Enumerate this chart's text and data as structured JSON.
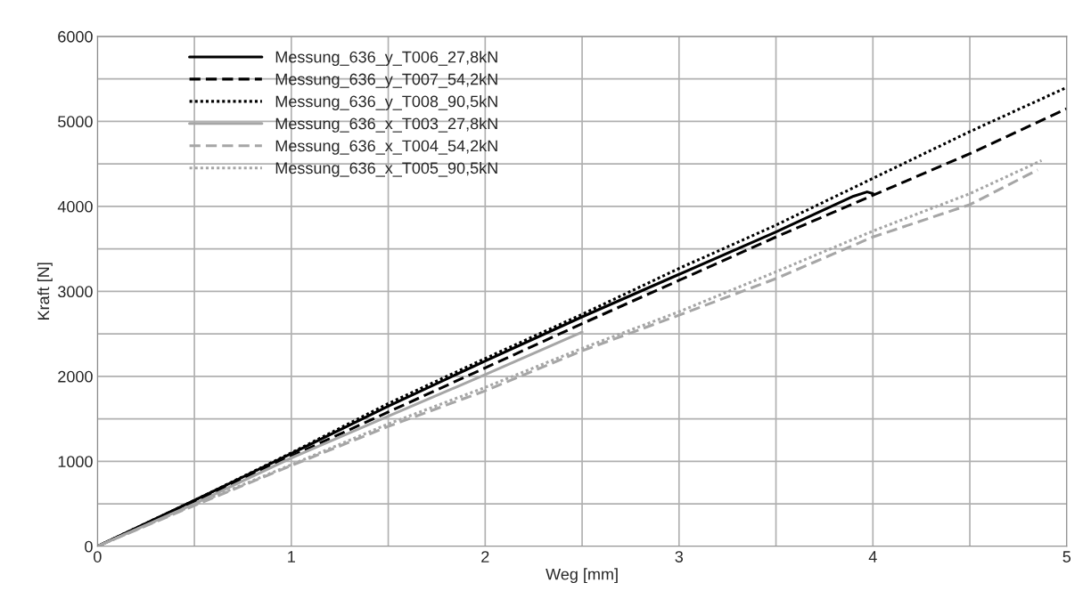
{
  "chart_data": {
    "type": "line",
    "xlabel": "Weg [mm]",
    "ylabel": "Kraft [N]",
    "xlim": [
      0,
      5
    ],
    "ylim": [
      0,
      6000
    ],
    "xticks": [
      0,
      {
        "value": 0.5,
        "label": null
      },
      1,
      {
        "value": 1.5,
        "label": null
      },
      2,
      {
        "value": 2.5,
        "label": null
      },
      3,
      {
        "value": 3.5,
        "label": null
      },
      4,
      {
        "value": 4.5,
        "label": null
      },
      5
    ],
    "yticks": [
      0,
      {
        "value": 500,
        "label": null
      },
      1000,
      {
        "value": 1500,
        "label": null
      },
      2000,
      {
        "value": 2500,
        "label": null
      },
      3000,
      {
        "value": 3500,
        "label": null
      },
      4000,
      {
        "value": 4500,
        "label": null
      },
      5000,
      {
        "value": 5500,
        "label": null
      },
      6000
    ],
    "grid": true,
    "legend": "top left",
    "marker": "none",
    "series": [
      {
        "name": "Messung_636_y_T006_27,8kN",
        "color": "#000000",
        "line_style": "solid",
        "x": [
          0,
          0.5,
          1,
          1.5,
          2,
          2.5,
          3,
          3.5,
          3.9,
          3.97,
          4.0
        ],
        "values": [
          0,
          540,
          1090,
          1650,
          2180,
          2700,
          3200,
          3700,
          4120,
          4170,
          4150
        ]
      },
      {
        "name": "Messung_636_y_T007_54,2kN",
        "color": "#000000",
        "line_style": "dashed",
        "x": [
          0,
          0.5,
          1,
          1.5,
          2,
          2.5,
          3,
          3.5,
          4,
          4.5,
          5
        ],
        "values": [
          0,
          520,
          1060,
          1580,
          2100,
          2620,
          3130,
          3640,
          4130,
          4620,
          5150
        ]
      },
      {
        "name": "Messung_636_y_T008_90,5kN",
        "color": "#000000",
        "line_style": "dotted",
        "x": [
          0,
          0.5,
          1,
          1.5,
          2,
          2.5,
          3,
          3.5,
          4,
          4.5,
          5
        ],
        "values": [
          0,
          540,
          1100,
          1680,
          2210,
          2730,
          3270,
          3780,
          4330,
          4880,
          5400
        ]
      },
      {
        "name": "Messung_636_x_T003_27,8kN",
        "color": "#a6a6a6",
        "line_style": "solid",
        "x": [
          0,
          0.5,
          1,
          1.5,
          2,
          2.5
        ],
        "values": [
          0,
          500,
          1040,
          1530,
          2020,
          2520
        ]
      },
      {
        "name": "Messung_636_x_T004_54,2kN",
        "color": "#a6a6a6",
        "line_style": "dashed",
        "x": [
          0,
          0.5,
          1,
          1.5,
          2,
          2.5,
          3,
          3.5,
          4,
          4.5,
          4.85
        ],
        "values": [
          0,
          480,
          950,
          1410,
          1830,
          2300,
          2720,
          3150,
          3640,
          4020,
          4430
        ]
      },
      {
        "name": "Messung_636_x_T005_90,5kN",
        "color": "#a6a6a6",
        "line_style": "dotted",
        "x": [
          0,
          0.5,
          1,
          1.5,
          2,
          2.5,
          3,
          3.5,
          4,
          4.5,
          4.87
        ],
        "values": [
          0,
          490,
          960,
          1440,
          1870,
          2330,
          2760,
          3230,
          3710,
          4150,
          4540
        ]
      }
    ]
  }
}
